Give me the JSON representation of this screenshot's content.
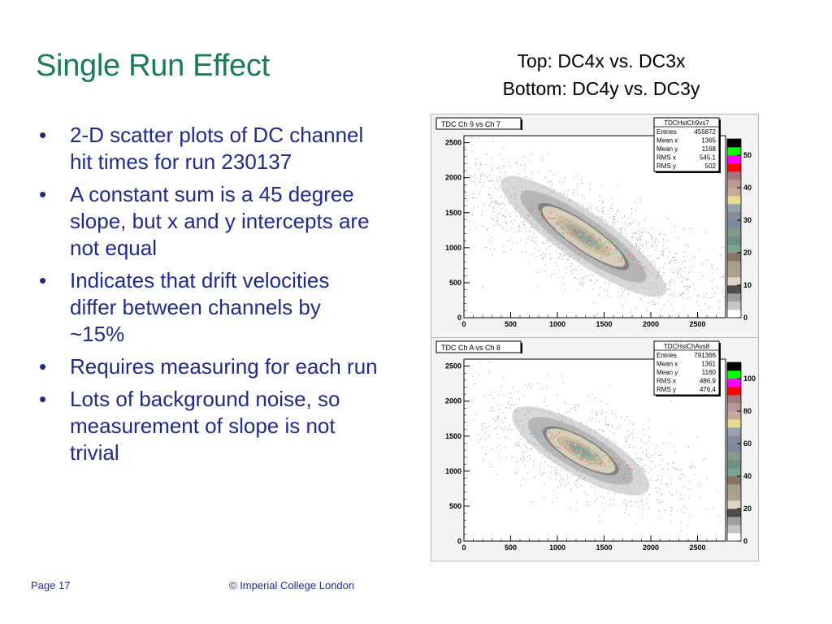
{
  "slide": {
    "title": "Single Run Effect",
    "caption_top": "Top: DC4x vs. DC3x",
    "caption_bottom": "Bottom: DC4y vs. DC3y",
    "bullets": [
      "2-D scatter plots of DC channel hit times for run 230137",
      "A constant sum is a 45 degree slope, but x and y intercepts are not equal",
      "Indicates that drift velocities differ between channels by ~15%",
      "Requires measuring for each run",
      "Lots of background noise, so measurement of slope is not trivial"
    ],
    "footer": {
      "page": "Page 17",
      "copyright": "© Imperial College London"
    }
  },
  "chart_data": [
    {
      "type": "heatmap",
      "title": "TDC Ch 9 vs Ch 7",
      "xlim": [
        0,
        2800
      ],
      "ylim": [
        0,
        2600
      ],
      "x_ticks": [
        0,
        500,
        1000,
        1500,
        2000,
        2500
      ],
      "y_ticks": [
        0,
        500,
        1000,
        1500,
        2000,
        2500
      ],
      "z_ticks": [
        0,
        10,
        20,
        30,
        40,
        50
      ],
      "zlim": [
        0,
        55
      ],
      "stats": {
        "name": "TDCHstCh9vs7",
        "rows": [
          {
            "label": "Entries",
            "value": "455872"
          },
          {
            "label": "Mean x",
            "value": "1365"
          },
          {
            "label": "Mean y",
            "value": "1168"
          },
          {
            "label": "RMS x",
            "value": "545.1"
          },
          {
            "label": "RMS y",
            "value": "502"
          }
        ]
      },
      "cluster": {
        "center": [
          1280,
          1160
        ],
        "major_sigma": 560,
        "minor_sigma": 120,
        "angle_deg": -35,
        "noise_points": 1400
      }
    },
    {
      "type": "heatmap",
      "title": "TDC Ch A vs Ch 8",
      "xlim": [
        0,
        2800
      ],
      "ylim": [
        0,
        2600
      ],
      "x_ticks": [
        0,
        500,
        1000,
        1500,
        2000,
        2500
      ],
      "y_ticks": [
        0,
        500,
        1000,
        1500,
        2000,
        2500
      ],
      "z_ticks": [
        0,
        20,
        40,
        60,
        80,
        100
      ],
      "zlim": [
        0,
        110
      ],
      "stats": {
        "name": "TDCHstChAvs8",
        "rows": [
          {
            "label": "Entries",
            "value": "791366"
          },
          {
            "label": "Mean x",
            "value": "1361"
          },
          {
            "label": "Mean y",
            "value": "1160"
          },
          {
            "label": "RMS x",
            "value": "486.9"
          },
          {
            "label": "RMS y",
            "value": "476.4"
          }
        ]
      },
      "cluster": {
        "center": [
          1250,
          1290
        ],
        "major_sigma": 440,
        "minor_sigma": 120,
        "angle_deg": -30,
        "noise_points": 1000
      }
    }
  ],
  "palette": [
    "#ffffff",
    "#c6c6c6",
    "#9e9e9e",
    "#4d4d4d",
    "#e0d6c6",
    "#b0a090",
    "#a3a090",
    "#867564",
    "#80a090",
    "#6e8e86",
    "#8a9a8a",
    "#7a8aa0",
    "#8a8a9a",
    "#9aa0b0",
    "#e6dc8e",
    "#c8a898",
    "#b89898",
    "#a07880",
    "#ff0000",
    "#ff00ff",
    "#00ff00",
    "#000000"
  ]
}
